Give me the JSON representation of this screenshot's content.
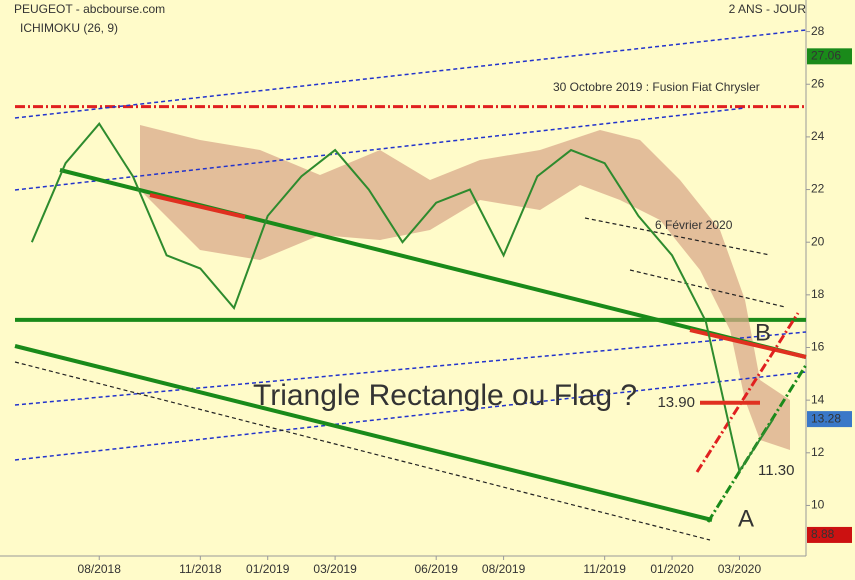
{
  "chart_data": {
    "type": "line",
    "title": "PEUGEOT - abcbourse.com",
    "subtitle": "2 ANS - JOUR",
    "indicator": "ICHIMOKU (26, 9)",
    "categories": [
      null,
      null,
      "08/2018",
      null,
      null,
      "11/2018",
      null,
      "01/2019",
      null,
      "03/2019",
      null,
      null,
      "06/2019",
      null,
      "08/2019",
      null,
      null,
      "11/2019",
      null,
      "01/2020",
      null,
      "03/2020",
      null
    ],
    "series": [
      {
        "color": "#2e8b2e",
        "values": [
          20.0,
          23.0,
          24.5,
          22.5,
          19.5,
          19.0,
          17.5,
          21.0,
          22.5,
          23.5,
          22.0,
          20.0,
          21.5,
          22.0,
          19.5,
          22.5,
          23.5,
          23.0,
          21.0,
          19.5,
          17.0,
          11.3,
          13.28
        ]
      }
    ],
    "ylim": [
      7.7,
      29.2
    ],
    "yticks": [
      10,
      12,
      14,
      16,
      18,
      20,
      22,
      24,
      26,
      28
    ],
    "horizontal_lines": [
      {
        "value": 25.15,
        "color": "#e02020",
        "style": "dashdot"
      },
      {
        "value": 17.05,
        "color": "#1a8a1a",
        "style": "solid"
      }
    ],
    "price_boxes": [
      {
        "value": 27.06,
        "color": "#1a8a1a"
      },
      {
        "value": 13.28,
        "color": "#3a78c8"
      },
      {
        "value": 8.88,
        "color": "#cc1111"
      }
    ],
    "level_labels": [
      {
        "value": 13.9,
        "label": "13.90"
      },
      {
        "value": 11.3,
        "label": "11.30"
      }
    ],
    "annotations": [
      "30 Octobre 2019 : Fusion Fiat Chrysler",
      "6 Février 2020",
      "Triangle Rectangle ou Flag ?",
      "A",
      "B"
    ]
  }
}
